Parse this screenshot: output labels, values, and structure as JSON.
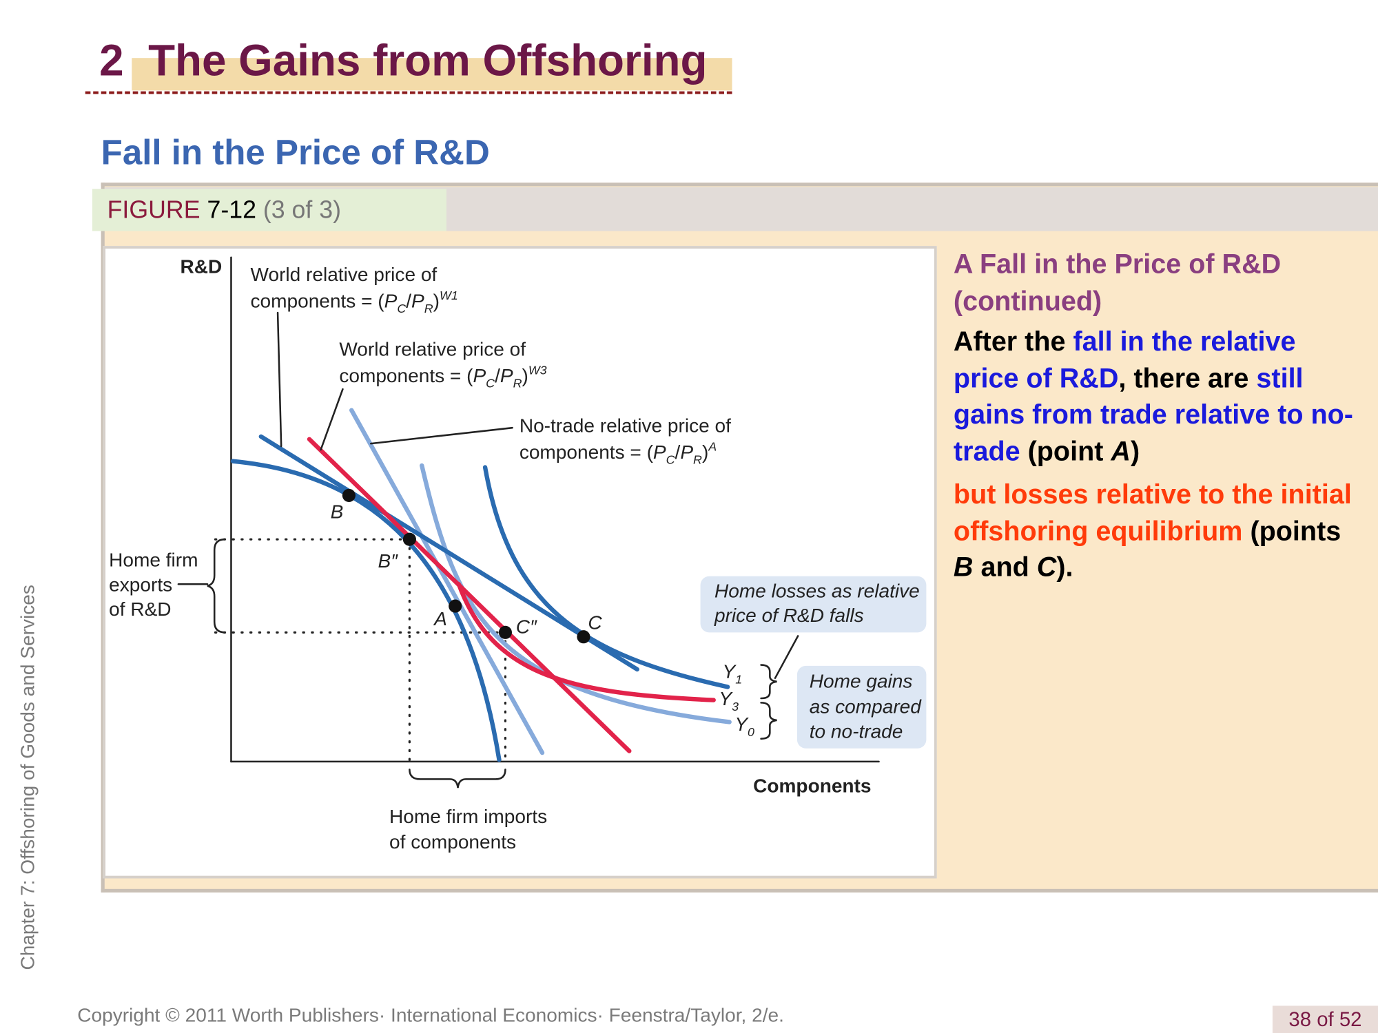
{
  "header": {
    "number": "2",
    "title": "The Gains from Offshoring",
    "subtitle": "Fall in the Price of R&D"
  },
  "figure": {
    "label": "FIGURE",
    "number": "7-12",
    "part": "(3 of 3)"
  },
  "diagram": {
    "y_axis_label": "R&D",
    "x_axis_label": "Components",
    "price_labels": [
      {
        "line1": "World relative price of",
        "line2": [
          "components = (",
          "P",
          "C",
          "/",
          "P",
          "R",
          ")",
          "W1"
        ]
      },
      {
        "line1": "World relative price of",
        "line2": [
          "components = (",
          "P",
          "C",
          "/",
          "P",
          "R",
          ")",
          "W3"
        ]
      },
      {
        "line1": "No-trade relative price of",
        "line2": [
          "components = (",
          "P",
          "C",
          "/",
          "P",
          "R",
          ")",
          "A"
        ]
      }
    ],
    "points": [
      "B",
      "B″",
      "A",
      "C″",
      "C"
    ],
    "curves": [
      [
        "Y",
        "1"
      ],
      [
        "Y",
        "3"
      ],
      [
        "Y",
        "0"
      ]
    ],
    "exports_label": [
      "Home firm",
      "exports",
      "of R&D"
    ],
    "imports_label": [
      "Home firm imports",
      "of components"
    ],
    "losses_note": [
      "Home losses as relative",
      "price of R&D falls"
    ],
    "gains_note": [
      "Home gains",
      "as compared",
      "to no-trade"
    ]
  },
  "explanation": {
    "heading": "A Fall in the Price of R&D (continued)",
    "paragraph1": [
      "After the ",
      "fall in the relative price of R&D",
      ", there are ",
      "still gains from trade relative to no-trade",
      " (point ",
      "A",
      ")"
    ],
    "paragraph2": [
      "but losses relative to the initial offshoring equilibrium",
      " (points ",
      "B",
      " and ",
      "C",
      ")."
    ]
  },
  "sidebar": "Chapter 7: Offshoring of Goods and Services",
  "footer": {
    "copyright": "Copyright © 2011 Worth Publishers· International Economics· Feenstra/Taylor, 2/e.",
    "page": "38 of 52"
  }
}
